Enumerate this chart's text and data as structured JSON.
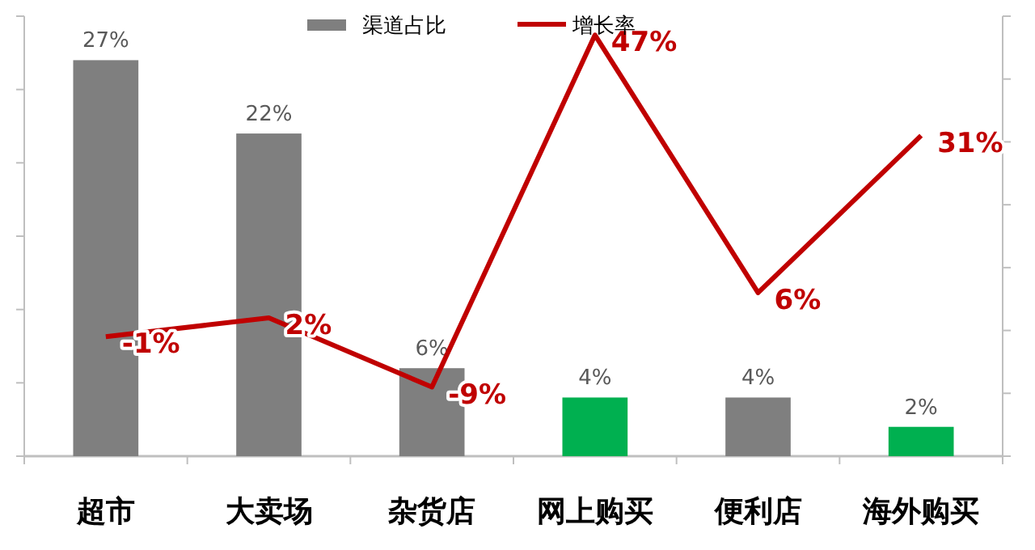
{
  "chart_data": {
    "type": "bar",
    "categories": [
      "超市",
      "大卖场",
      "杂货店",
      "网上购买",
      "便利店",
      "海外购买"
    ],
    "series": [
      {
        "name": "渠道占比",
        "color": "#7f7f7f",
        "colors": [
          "#7f7f7f",
          "#7f7f7f",
          "#7f7f7f",
          "#00b050",
          "#7f7f7f",
          "#00b050"
        ],
        "values": [
          27,
          22,
          6,
          4,
          4,
          2
        ],
        "value_labels": [
          "27%",
          "22%",
          "6%",
          "4%",
          "4%",
          "2%"
        ]
      },
      {
        "name": "增长率",
        "type": "line",
        "axis": "y2",
        "color": "#c00000",
        "values": [
          -1,
          2,
          -9,
          47,
          6,
          31
        ],
        "value_labels": [
          "-1%",
          "2%",
          "-9%",
          "47%",
          "6%",
          "31%"
        ]
      }
    ],
    "ylim": [
      0,
      30
    ],
    "yticks": [
      {
        "value": 0,
        "label": null
      },
      {
        "value": 5,
        "label": null
      },
      {
        "value": 10,
        "label": null
      },
      {
        "value": 15,
        "label": null
      },
      {
        "value": 20,
        "label": null
      },
      {
        "value": 25,
        "label": null
      },
      {
        "value": 30,
        "label": null
      }
    ],
    "y2lim": [
      -20,
      50
    ],
    "y2ticks": [
      {
        "value": -20,
        "label": null
      },
      {
        "value": -10,
        "label": null
      },
      {
        "value": 0,
        "label": null
      },
      {
        "value": 10,
        "label": null
      },
      {
        "value": 20,
        "label": null
      },
      {
        "value": 30,
        "label": null
      },
      {
        "value": 40,
        "label": null
      },
      {
        "value": 50,
        "label": null
      }
    ],
    "legend": "top",
    "grid": false
  }
}
